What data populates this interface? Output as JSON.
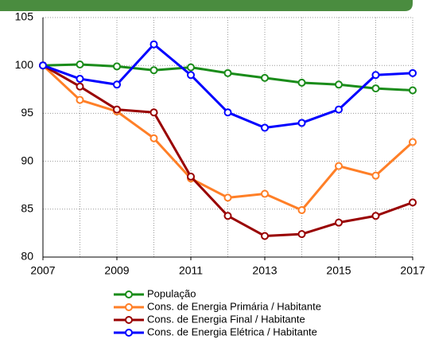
{
  "chart_data": {
    "type": "line",
    "x": [
      2007,
      2008,
      2009,
      2010,
      2011,
      2012,
      2013,
      2014,
      2015,
      2016,
      2017
    ],
    "series": [
      {
        "name": "População",
        "color": "#1a8c1a",
        "values": [
          100,
          100.1,
          99.9,
          99.5,
          99.8,
          99.2,
          98.7,
          98.2,
          98.0,
          97.6,
          97.4
        ]
      },
      {
        "name": "Cons. de Energia Primária / Habitante",
        "color": "#ff7f27",
        "values": [
          100,
          96.4,
          95.2,
          92.4,
          88.2,
          86.2,
          86.6,
          84.9,
          89.5,
          88.5,
          92.0
        ]
      },
      {
        "name": "Cons. de Energia Final / Habitante",
        "color": "#990000",
        "values": [
          100,
          97.8,
          95.4,
          95.1,
          88.4,
          84.3,
          82.2,
          82.4,
          83.6,
          84.3,
          85.7
        ]
      },
      {
        "name": "Cons. de Energia Elétrica / Habitante",
        "color": "#0000ff",
        "values": [
          100,
          98.6,
          98.0,
          102.2,
          99.0,
          95.1,
          93.5,
          94.0,
          95.4,
          99.0,
          99.2
        ]
      }
    ],
    "xlim": [
      2007,
      2017
    ],
    "xticks": [
      2007,
      2009,
      2011,
      2013,
      2015,
      2017
    ],
    "ylim": [
      80,
      105
    ],
    "yticks": [
      80,
      85,
      90,
      95,
      100,
      105
    ],
    "grid": true,
    "legend": "bottom"
  }
}
